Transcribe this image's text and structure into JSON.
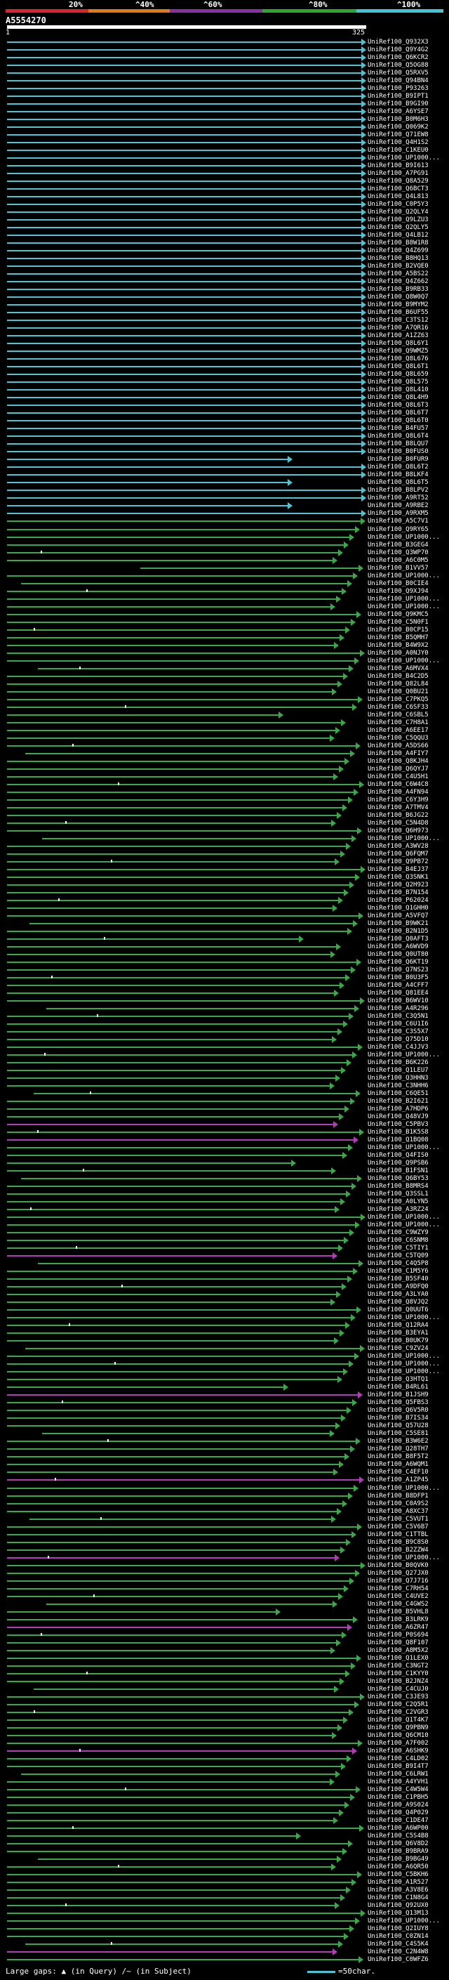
{
  "legend": {
    "labels": [
      "20%",
      "^40%",
      "^60%",
      "^80%",
      "^100%"
    ],
    "colors": [
      "#e0232b",
      "#e07a12",
      "#8a2fa8",
      "#2ea82a",
      "#3cc6d8"
    ]
  },
  "query": {
    "id": "A5554270",
    "start": "1",
    "end": "325"
  },
  "colors": {
    "cyan": "#4fc3d6",
    "green": "#3aa84a",
    "magenta": "#b23bb8",
    "gap": "#000000"
  },
  "hits": [
    "UniRef100_Q932X3",
    "UniRef100_Q9Y4G2",
    "UniRef100_Q6KCR2",
    "UniRef100_Q5OG88",
    "UniRef100_Q5RXV5",
    "UniRef100_Q94BN4",
    "UniRef100_P93263",
    "UniRef100_B9IPT1",
    "UniRef100_B9GI90",
    "UniRef100_A6YSE7",
    "UniRef100_B0M6H3",
    "UniRef100_Q069K2",
    "UniRef100_Q71EW8",
    "UniRef100_Q4H1S2",
    "UniRef100_C1KEU0",
    "UniRef100_UP1000...",
    "UniRef100_B9I613",
    "UniRef100_A7PG91",
    "UniRef100_Q8A529",
    "UniRef100_Q6BCT3",
    "UniRef100_Q4L813",
    "UniRef100_C0P5Y3",
    "UniRef100_Q2QLY4",
    "UniRef100_Q9LZU3",
    "UniRef100_Q2QLY5",
    "UniRef100_Q4LB12",
    "UniRef100_B8W1R8",
    "UniRef100_Q4Z699",
    "UniRef100_B8HQ13",
    "UniRef100_B2VQE0",
    "UniRef100_A5BS22",
    "UniRef100_Q4Z662",
    "UniRef100_B9RB33",
    "UniRef100_Q8W0Q7",
    "UniRef100_B9MYM2",
    "UniRef100_B6UF55",
    "UniRef100_C3TS12",
    "UniRef100_A7QR16",
    "UniRef100_A1ZZ63",
    "UniRef100_Q8L6Y1",
    "UniRef100_Q9WMZ5",
    "UniRef100_Q8L676",
    "UniRef100_Q8L6T1",
    "UniRef100_Q8L659",
    "UniRef100_Q8L575",
    "UniRef100_Q8L410",
    "UniRef100_Q8L4H9",
    "UniRef100_Q8L6T3",
    "UniRef100_Q8L6T7",
    "UniRef100_Q8L6T0",
    "UniRef100_B4FU57",
    "UniRef100_Q8L6T4",
    "UniRef100_B8LQU7",
    "UniRef100_B0FUS0",
    "UniRef100_B0FUR9",
    "UniRef100_Q8L6T2",
    "UniRef100_B8LKF4",
    "UniRef100_Q8L6T5",
    "UniRef100_B8LPV2",
    "UniRef100_A9RT52",
    "UniRef100_A9RBE2",
    "UniRef100_A9RXM5",
    "UniRef100_A5C7V1",
    "UniRef100_Q9RY65",
    "UniRef100_UP1000...",
    "UniRef100_B3GEG4",
    "UniRef100_Q3WP70",
    "UniRef100_A6C0M5",
    "UniRef100_B1VV57",
    "UniRef100_UP1000...",
    "UniRef100_B0CIE4",
    "UniRef100_Q9XJ94",
    "UniRef100_UP1000...",
    "UniRef100_UP1000...",
    "UniRef100_Q9KMC5",
    "UniRef100_C5N0F1",
    "UniRef100_B0CP15",
    "UniRef100_B5QMH7",
    "UniRef100_B4W9X2",
    "UniRef100_A0NJY0",
    "UniRef100_UP1000...",
    "UniRef100_A6MVX4",
    "UniRef100_B4C2D5",
    "UniRef100_Q82L84",
    "UniRef100_Q0BU21",
    "UniRef100_C7PKQ5",
    "UniRef100_C6SF33",
    "UniRef100_C6SBL5",
    "UniRef100_C7H8A1",
    "UniRef100_A6EE17",
    "UniRef100_C5QQU3",
    "UniRef100_A5DS66",
    "UniRef100_A4FIY7",
    "UniRef100_Q8KJH4",
    "UniRef100_Q6QYJ7",
    "UniRef100_C4U5H1",
    "UniRef100_C6W4C8",
    "UniRef100_A4FN94",
    "UniRef100_C6Y3H9",
    "UniRef100_A7TMV4",
    "UniRef100_B6JG22",
    "UniRef100_C5N4D8",
    "UniRef100_Q6H973",
    "UniRef100_UP1000...",
    "UniRef100_A3WV28",
    "UniRef100_Q6FQM7",
    "UniRef100_Q9PB72",
    "UniRef100_B4EJ37",
    "UniRef100_Q3SNK1",
    "UniRef100_Q2H923",
    "UniRef100_B7N154",
    "UniRef100_P62024",
    "UniRef100_Q1GHH0",
    "UniRef100_A5VFQ7",
    "UniRef100_B9WK21",
    "UniRef100_B2N1D5",
    "UniRef100_Q0AFT3",
    "UniRef100_A6WVD9",
    "UniRef100_Q0UT80",
    "UniRef100_Q6KT19",
    "UniRef100_Q7NS23",
    "UniRef100_B0U3F5",
    "UniRef100_A4CFF7",
    "UniRef100_Q81EE4",
    "UniRef100_B6WV10",
    "UniRef100_A4R296",
    "UniRef100_C3Q5N1",
    "UniRef100_C6U1I6",
    "UniRef100_C3S5X7",
    "UniRef100_Q75D10",
    "UniRef100_C4JJV3",
    "UniRef100_UP1000...",
    "UniRef100_B6K226",
    "UniRef100_Q1LEU7",
    "UniRef100_Q3HHN3",
    "UniRef100_C3NHH6",
    "UniRef100_C6QE51",
    "UniRef100_B2I621",
    "UniRef100_A7HDP6",
    "UniRef100_Q48VJ9",
    "UniRef100_C5PBV3",
    "UniRef100_B1K5S8",
    "UniRef100_Q1BQ08",
    "UniRef100_UP1000...",
    "UniRef100_Q4FIS0",
    "UniRef100_Q9PSB6",
    "UniRef100_B1FSN1",
    "UniRef100_Q6BY53",
    "UniRef100_B8MRS4",
    "UniRef100_Q3SSL1",
    "UniRef100_A0LYN5",
    "UniRef100_A3RZ24",
    "UniRef100_UP1000...",
    "UniRef100_UP1000...",
    "UniRef100_C9WZY9",
    "UniRef100_C6SNM8",
    "UniRef100_C5TIY1",
    "UniRef100_C5TQ09",
    "UniRef100_C4Q5P8",
    "UniRef100_C1M5Y6",
    "UniRef100_B5SF40",
    "UniRef100_A9DFQ0",
    "UniRef100_A3LYA0",
    "UniRef100_Q8VJQ2",
    "UniRef100_Q0UUT6",
    "UniRef100_UP1000...",
    "UniRef100_Q12RA4",
    "UniRef100_B3EYA1",
    "UniRef100_B0UK79",
    "UniRef100_C9ZV24",
    "UniRef100_UP1000...",
    "UniRef100_UP1000...",
    "UniRef100_UP1000...",
    "UniRef100_Q3HTQ1",
    "UniRef100_B4RL61",
    "UniRef100_B1JSH9",
    "UniRef100_Q5FBS3",
    "UniRef100_Q6V5R0",
    "UniRef100_B7IS34",
    "UniRef100_Q57U28",
    "UniRef100_C5SE81",
    "UniRef100_B3W6E2",
    "UniRef100_Q28TH7",
    "UniRef100_B8F5T2",
    "UniRef100_A6WQM1",
    "UniRef100_C4EF10",
    "UniRef100_A1ZP45",
    "UniRef100_UP1000...",
    "UniRef100_B8DFP1",
    "UniRef100_C0A9S2",
    "UniRef100_A8XC37",
    "UniRef100_C5VUT1",
    "UniRef100_C5V6B7",
    "UniRef100_C1TTBL",
    "UniRef100_B9C8S0",
    "UniRef100_B2ZZW4",
    "UniRef100_UP1000...",
    "UniRef100_B0QVK0",
    "UniRef100_Q27JX0",
    "UniRef100_Q7J716",
    "UniRef100_C7RH54",
    "UniRef100_C4UVE2",
    "UniRef100_C4GWS2",
    "UniRef100_B5VHL8",
    "UniRef100_B3LRK9",
    "UniRef100_A6ZR47",
    "UniRef100_P0S694",
    "UniRef100_Q8F107",
    "UniRef100_A8M5X2",
    "UniRef100_Q1LEX0",
    "UniRef100_C3NGT2",
    "UniRef100_C1KYY0",
    "UniRef100_B2JNZ4",
    "UniRef100_C4CUJ0",
    "UniRef100_C3JE93",
    "UniRef100_C2Q5R1",
    "UniRef100_C2VGR3",
    "UniRef100_Q1T4K7",
    "UniRef100_Q9PBN9",
    "UniRef100_Q6CM10",
    "UniRef100_A7F002",
    "UniRef100_A6SHK9",
    "UniRef100_C4LD02",
    "UniRef100_B9I4T7",
    "UniRef100_C6LRW1",
    "UniRef100_A4YVH1",
    "UniRef100_C4W5W4",
    "UniRef100_C1PBH5",
    "UniRef100_A9S024",
    "UniRef100_Q4P029",
    "UniRef100_C1DE47",
    "UniRef100_A6WP00",
    "UniRef100_C5S4B8",
    "UniRef100_Q6V8D2",
    "UniRef100_B9BRA9",
    "UniRef100_B9BG49",
    "UniRef100_A6QR50",
    "UniRef100_C5BKH6",
    "UniRef100_A1R527",
    "UniRef100_A3V8E6",
    "UniRef100_C1N8G4",
    "UniRef100_Q92UX0",
    "UniRef100_Q13M13",
    "UniRef100_UP1000...",
    "UniRef100_Q2IUY8",
    "UniRef100_C0ZN14",
    "UniRef100_C4S5K4",
    "UniRef100_C2N4W8",
    "UniRef100_C0WFZ6"
  ],
  "footer": {
    "large_gaps": "Large gaps:",
    "in_query": "(in Query)",
    "in_subject": "/~ (in Subject)",
    "scale": "=50char."
  }
}
